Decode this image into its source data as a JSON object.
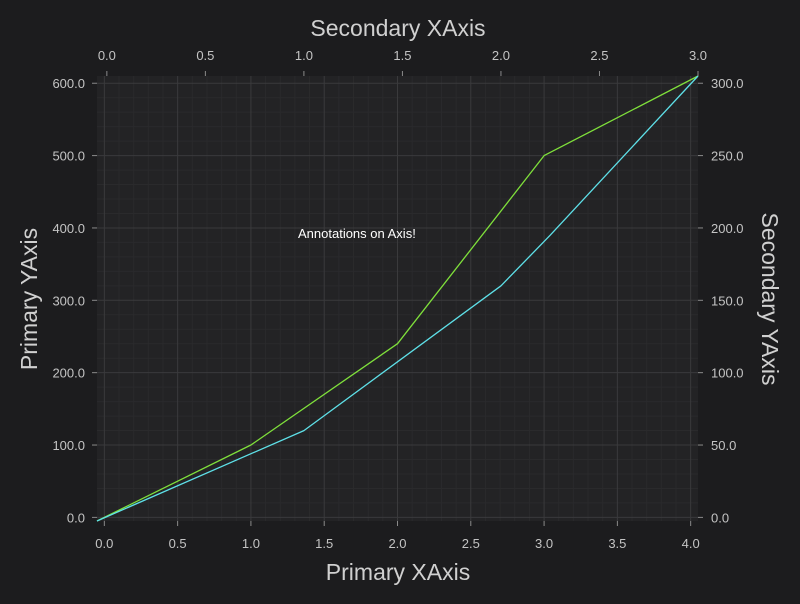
{
  "chart_data": {
    "type": "line",
    "title": "",
    "annotation": "Annotations on Axis!",
    "axes": {
      "primary_x": {
        "label": "Primary XAxis",
        "range": [
          -0.05,
          4.05
        ],
        "ticks": [
          0.0,
          0.5,
          1.0,
          1.5,
          2.0,
          2.5,
          3.0,
          3.5,
          4.0
        ],
        "tick_labels": [
          "0.0",
          "0.5",
          "1.0",
          "1.5",
          "2.0",
          "2.5",
          "3.0",
          "3.5",
          "4.0"
        ],
        "position": "bottom"
      },
      "secondary_x": {
        "label": "Secondary XAxis",
        "range": [
          -0.05,
          3.0
        ],
        "ticks": [
          0.0,
          0.5,
          1.0,
          1.5,
          2.0,
          2.5,
          3.0
        ],
        "tick_labels": [
          "0.0",
          "0.5",
          "1.0",
          "1.5",
          "2.0",
          "2.5",
          "3.0"
        ],
        "position": "top"
      },
      "primary_y": {
        "label": "Primary YAxis",
        "range": [
          -5,
          610
        ],
        "ticks": [
          0,
          100,
          200,
          300,
          400,
          500,
          600
        ],
        "tick_labels": [
          "0.0",
          "100.0",
          "200.0",
          "300.0",
          "400.0",
          "500.0",
          "600.0"
        ],
        "position": "left"
      },
      "secondary_y": {
        "label": "Secondary YAxis",
        "range": [
          -2.5,
          305
        ],
        "ticks": [
          0,
          50,
          100,
          150,
          200,
          250,
          300
        ],
        "tick_labels": [
          "0.0",
          "50.0",
          "100.0",
          "150.0",
          "200.0",
          "250.0",
          "300.0"
        ],
        "position": "right"
      }
    },
    "series": [
      {
        "color": "#7fe03b",
        "x_axis": "primary_x",
        "y_axis": "primary_y",
        "x": [
          -0.05,
          1.0,
          2.0,
          3.0,
          4.05
        ],
        "y": [
          -5,
          100,
          240,
          500,
          610
        ]
      },
      {
        "color": "#5ee0e8",
        "x_axis": "secondary_x",
        "y_axis": "secondary_y",
        "x": [
          -0.05,
          1.0,
          2.0,
          2.25,
          3.0
        ],
        "y": [
          -2.5,
          60,
          160,
          195,
          305
        ]
      }
    ],
    "grid": true,
    "colors": {
      "background": "#1c1c1e",
      "plot_background": "#232325",
      "grid_major": "#3a3a3c",
      "grid_minor": "#2a2a2c"
    }
  }
}
